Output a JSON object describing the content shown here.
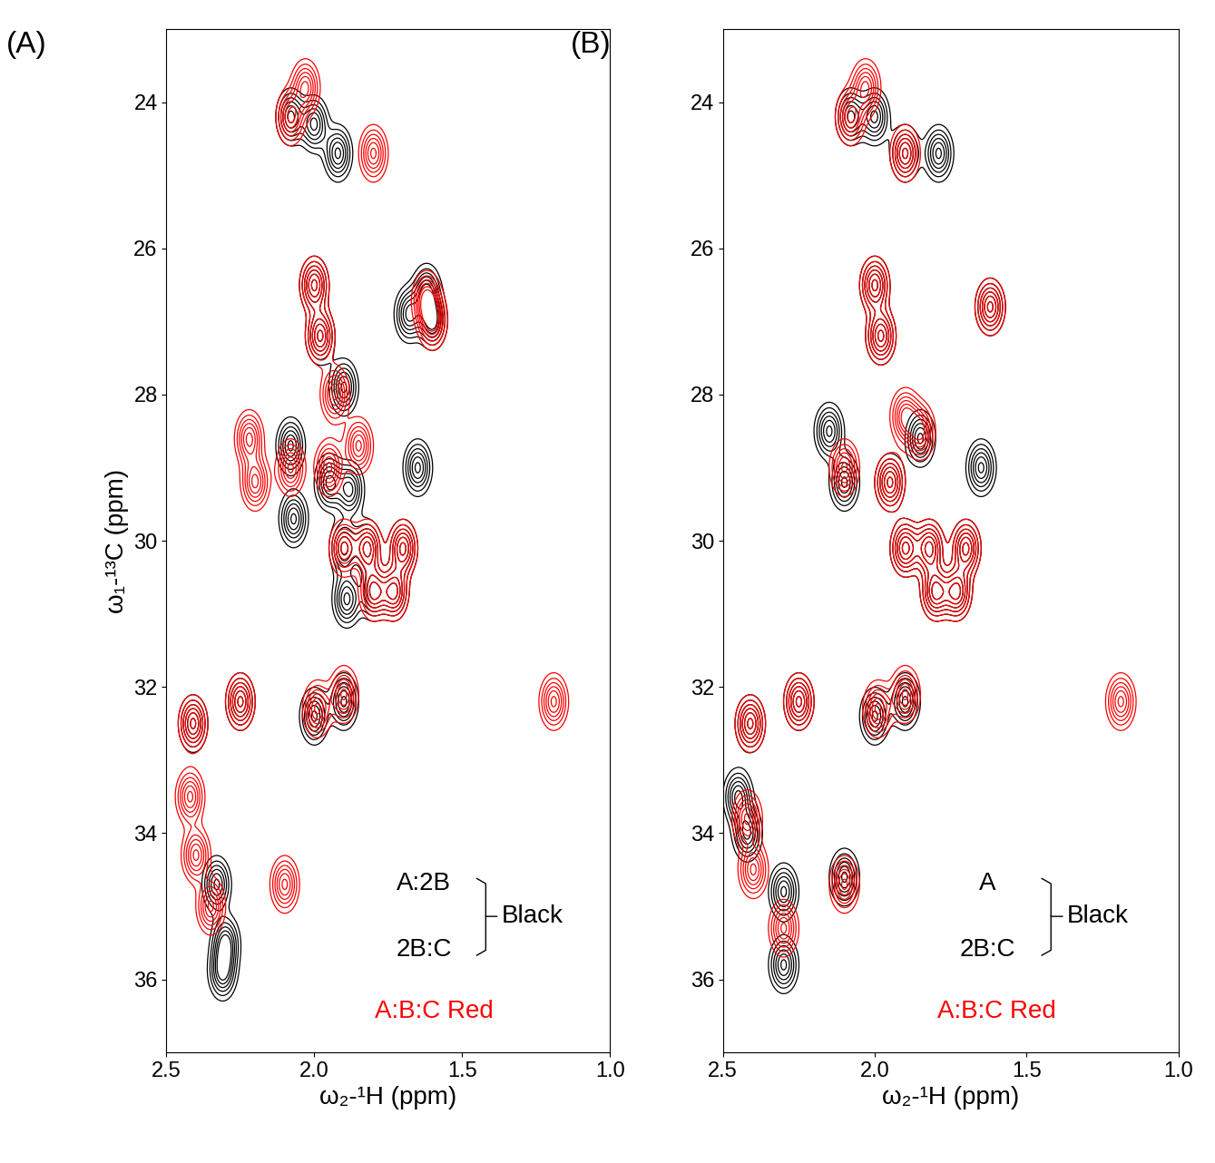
{
  "chart_data": [
    {
      "type": "contour",
      "title": "(A)",
      "x_label": "ω₂-¹H (ppm)",
      "y_label": "ω₁-¹³C (ppm)",
      "xlim": [
        2.5,
        1.0
      ],
      "ylim": [
        37,
        23
      ],
      "xticks": [
        2.5,
        {
          "value": 2.0,
          "label": "2.0"
        },
        1.5,
        {
          "value": 1.0,
          "label": "1.0"
        }
      ],
      "yticks": [
        24,
        26,
        28,
        30,
        32,
        34,
        36
      ],
      "key": {
        "black_samples": [
          "A:2B",
          "2B:C"
        ],
        "black": "Black",
        "red": "A:B:C Red"
      },
      "series": [
        {
          "color": "black",
          "peaks": [
            [
              2.08,
              24.2
            ],
            [
              2.0,
              24.3
            ],
            [
              1.92,
              24.7
            ],
            [
              2.0,
              26.5
            ],
            [
              1.98,
              27.2
            ],
            [
              1.62,
              26.6
            ],
            [
              1.6,
              27.0
            ],
            [
              1.68,
              26.9
            ],
            [
              1.9,
              27.9
            ],
            [
              2.08,
              28.7
            ],
            [
              2.07,
              29.7
            ],
            [
              1.95,
              29.2
            ],
            [
              1.88,
              29.3
            ],
            [
              1.9,
              30.1
            ],
            [
              1.82,
              30.1
            ],
            [
              1.7,
              30.1
            ],
            [
              1.8,
              30.7
            ],
            [
              1.73,
              30.7
            ],
            [
              1.89,
              30.8
            ],
            [
              2.41,
              32.5
            ],
            [
              2.25,
              32.2
            ],
            [
              2.0,
              32.4
            ],
            [
              1.9,
              32.2
            ],
            [
              2.33,
              34.7
            ],
            [
              2.3,
              35.5
            ],
            [
              2.31,
              35.9
            ],
            [
              1.65,
              29.0
            ]
          ]
        },
        {
          "color": "red",
          "peaks": [
            [
              2.08,
              24.2
            ],
            [
              2.03,
              23.8
            ],
            [
              1.8,
              24.7
            ],
            [
              2.0,
              26.5
            ],
            [
              1.98,
              27.2
            ],
            [
              1.62,
              26.7
            ],
            [
              1.6,
              27.0
            ],
            [
              1.93,
              28.0
            ],
            [
              2.22,
              28.6
            ],
            [
              2.2,
              29.2
            ],
            [
              2.08,
              29.0
            ],
            [
              1.95,
              29.0
            ],
            [
              1.85,
              28.7
            ],
            [
              1.9,
              30.1
            ],
            [
              1.82,
              30.1
            ],
            [
              1.7,
              30.1
            ],
            [
              1.8,
              30.7
            ],
            [
              1.73,
              30.7
            ],
            [
              2.41,
              32.5
            ],
            [
              2.25,
              32.2
            ],
            [
              1.99,
              32.3
            ],
            [
              1.9,
              32.1
            ],
            [
              1.19,
              32.2
            ],
            [
              2.42,
              33.5
            ],
            [
              2.4,
              34.3
            ],
            [
              2.35,
              35.0
            ],
            [
              2.1,
              34.7
            ]
          ]
        }
      ]
    },
    {
      "type": "contour",
      "title": "(B)",
      "x_label": "ω₂-¹H (ppm)",
      "xlim": [
        2.5,
        1.0
      ],
      "ylim": [
        37,
        23
      ],
      "xticks": [
        2.5,
        {
          "value": 2.0,
          "label": "2.0"
        },
        1.5,
        {
          "value": 1.0,
          "label": "1.0"
        }
      ],
      "yticks": [
        24,
        26,
        28,
        30,
        32,
        34,
        36
      ],
      "key": {
        "black_samples": [
          "A",
          "2B:C"
        ],
        "black": "Black",
        "red": "A:B:C Red"
      },
      "series": [
        {
          "color": "black",
          "peaks": [
            [
              2.08,
              24.2
            ],
            [
              2.0,
              24.2
            ],
            [
              1.9,
              24.7
            ],
            [
              1.79,
              24.7
            ],
            [
              2.0,
              26.5
            ],
            [
              1.98,
              27.2
            ],
            [
              1.62,
              26.8
            ],
            [
              2.15,
              28.5
            ],
            [
              2.1,
              29.2
            ],
            [
              1.95,
              29.2
            ],
            [
              1.85,
              28.6
            ],
            [
              1.65,
              29.0
            ],
            [
              1.9,
              30.1
            ],
            [
              1.82,
              30.1
            ],
            [
              1.7,
              30.1
            ],
            [
              1.8,
              30.7
            ],
            [
              1.73,
              30.7
            ],
            [
              2.41,
              32.5
            ],
            [
              2.25,
              32.2
            ],
            [
              2.0,
              32.4
            ],
            [
              1.9,
              32.2
            ],
            [
              2.45,
              33.5
            ],
            [
              2.42,
              34.0
            ],
            [
              2.3,
              34.8
            ],
            [
              2.3,
              35.8
            ],
            [
              2.1,
              34.6
            ]
          ]
        },
        {
          "color": "red",
          "peaks": [
            [
              2.08,
              24.2
            ],
            [
              2.03,
              23.8
            ],
            [
              1.9,
              24.7
            ],
            [
              2.0,
              26.5
            ],
            [
              1.98,
              27.2
            ],
            [
              1.62,
              26.8
            ],
            [
              1.9,
              28.3
            ],
            [
              2.1,
              29.0
            ],
            [
              1.95,
              29.2
            ],
            [
              1.85,
              28.5
            ],
            [
              1.9,
              30.1
            ],
            [
              1.82,
              30.1
            ],
            [
              1.7,
              30.1
            ],
            [
              1.8,
              30.7
            ],
            [
              1.73,
              30.7
            ],
            [
              2.41,
              32.5
            ],
            [
              2.25,
              32.2
            ],
            [
              1.99,
              32.3
            ],
            [
              1.9,
              32.1
            ],
            [
              1.19,
              32.2
            ],
            [
              2.42,
              33.8
            ],
            [
              2.4,
              34.5
            ],
            [
              2.3,
              35.3
            ],
            [
              2.1,
              34.7
            ]
          ]
        }
      ]
    }
  ]
}
